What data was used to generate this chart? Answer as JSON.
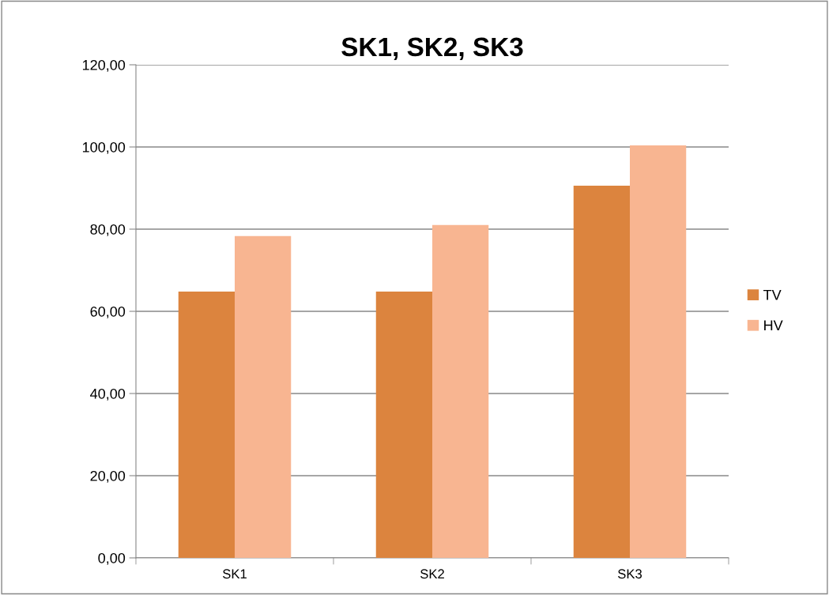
{
  "chart_data": {
    "type": "bar",
    "title": "SK1, SK2, SK3",
    "categories": [
      "SK1",
      "SK2",
      "SK3"
    ],
    "series": [
      {
        "name": "TV",
        "color": "#dc843e",
        "values": [
          64.8,
          64.8,
          90.6
        ]
      },
      {
        "name": "HV",
        "color": "#f8b591",
        "values": [
          78.3,
          81.0,
          100.4
        ]
      }
    ],
    "ylim": [
      0,
      120
    ],
    "yticks": [
      {
        "value": 0,
        "label": "0,00"
      },
      {
        "value": 20,
        "label": "20,00"
      },
      {
        "value": 40,
        "label": "40,00"
      },
      {
        "value": 60,
        "label": "60,00"
      },
      {
        "value": 80,
        "label": "80,00"
      },
      {
        "value": 100,
        "label": "100,00"
      },
      {
        "value": 120,
        "label": "120,00"
      }
    ],
    "grid": "y",
    "legend": "right"
  }
}
